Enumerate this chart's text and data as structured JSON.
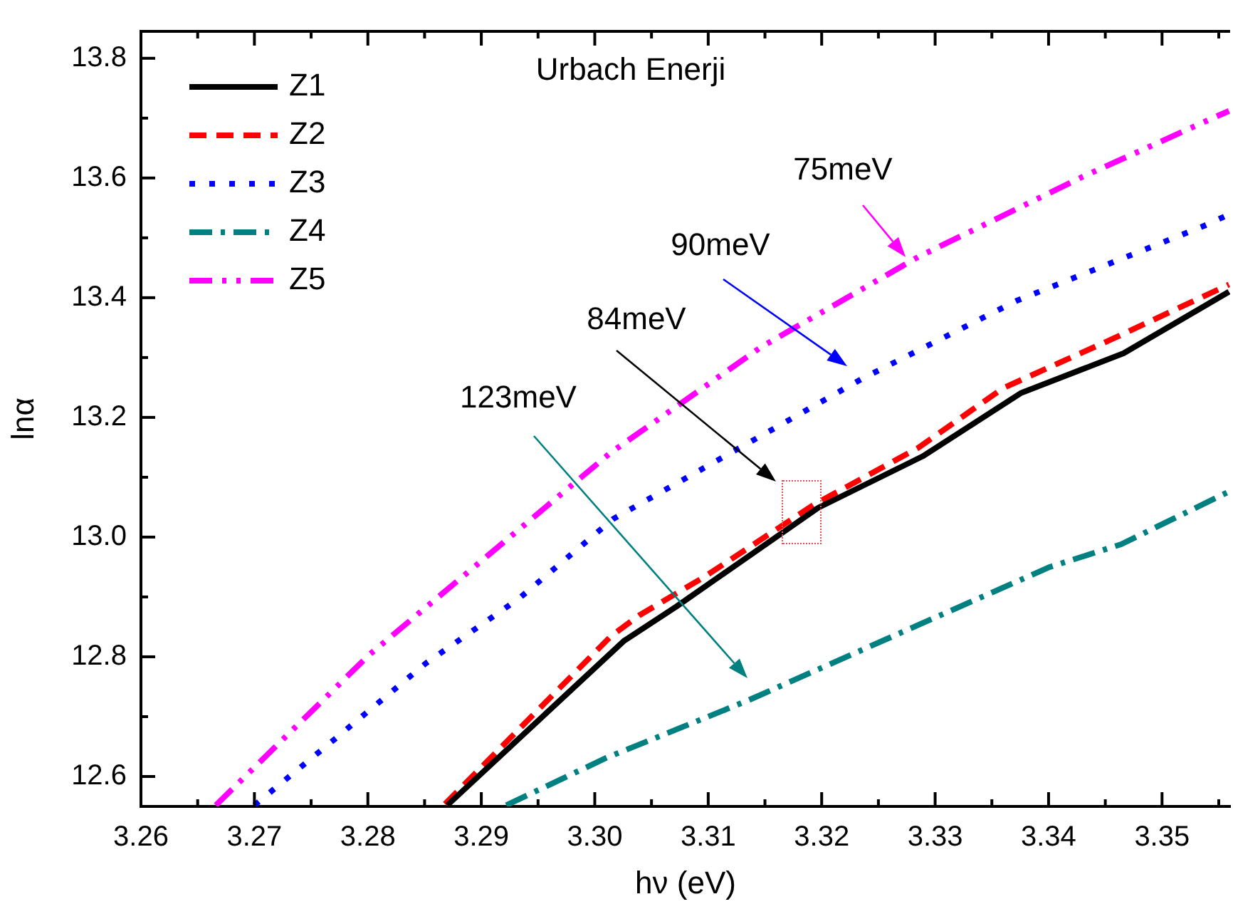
{
  "chart_data": {
    "type": "line",
    "xlabel": "hν (eV)",
    "ylabel": "lnα",
    "xlim": [
      3.26,
      3.356
    ],
    "ylim": [
      12.55,
      13.845
    ],
    "xticks": [
      3.26,
      {
        "value": 3.265,
        "label": null
      },
      3.27,
      {
        "value": 3.275,
        "label": null
      },
      3.28,
      {
        "value": 3.285,
        "label": null
      },
      3.29,
      {
        "value": 3.295,
        "label": null
      },
      {
        "value": 3.3,
        "label": "3.30"
      },
      {
        "value": 3.305,
        "label": null
      },
      3.31,
      {
        "value": 3.315,
        "label": null
      },
      3.32,
      {
        "value": 3.325,
        "label": null
      },
      3.33,
      {
        "value": 3.335,
        "label": null
      },
      3.34,
      {
        "value": 3.345,
        "label": null
      },
      3.35,
      {
        "value": 3.355,
        "label": null
      }
    ],
    "yticks": [
      12.6,
      {
        "value": 12.7,
        "label": null
      },
      12.8,
      {
        "value": 12.9,
        "label": null
      },
      {
        "value": 13,
        "label": "13.0"
      },
      {
        "value": 13.1,
        "label": null
      },
      13.2,
      {
        "value": 13.3,
        "label": null
      },
      13.4,
      {
        "value": 13.5,
        "label": null
      },
      13.6,
      {
        "value": 13.7,
        "label": null
      },
      13.8
    ],
    "grid": false,
    "legend": "top left",
    "marker": "none",
    "series": [
      {
        "name": "Z1",
        "color": "#000000",
        "line_style": "solid",
        "x": [
          3.287,
          3.3026,
          3.3072,
          3.3197,
          3.3289,
          3.3376,
          3.3466,
          3.3559
        ],
        "values": [
          12.552,
          12.827,
          12.884,
          13.049,
          13.135,
          13.241,
          13.307,
          13.41
        ]
      },
      {
        "name": "Z2",
        "color": "#ff0000",
        "line_style": "dashed",
        "x": [
          3.2868,
          3.3014,
          3.3039,
          3.3097,
          3.3193,
          3.3285,
          3.336,
          3.3455,
          3.3559
        ],
        "values": [
          12.554,
          12.834,
          12.869,
          12.934,
          13.054,
          13.149,
          13.249,
          13.33,
          13.422
        ]
      },
      {
        "name": "Z3",
        "color": "#0000ff",
        "line_style": "dotted",
        "x": [
          3.27,
          3.2768,
          3.2851,
          3.2933,
          3.3016,
          3.3153,
          3.3235,
          3.3372,
          3.3537,
          3.3559
        ],
        "values": [
          12.552,
          12.658,
          12.789,
          12.897,
          13.03,
          13.176,
          13.264,
          13.395,
          13.52,
          13.539
        ]
      },
      {
        "name": "Z4",
        "color": "#008080",
        "line_style": "dashdot",
        "x": [
          3.2922,
          3.301,
          3.3135,
          3.3285,
          3.3401,
          3.3464,
          3.3559
        ],
        "values": [
          12.552,
          12.631,
          12.727,
          12.853,
          12.95,
          12.988,
          13.076
        ]
      },
      {
        "name": "Z5",
        "color": "#ff00ff",
        "line_style": "dashdotdot",
        "x": [
          3.2666,
          3.2801,
          3.3014,
          3.3147,
          3.3285,
          3.343,
          3.3547,
          3.3559
        ],
        "values": [
          12.552,
          12.803,
          13.141,
          13.318,
          13.468,
          13.602,
          13.702,
          13.712
        ]
      }
    ],
    "annotations": [
      "Urbach Enerji",
      {
        "text": "75meV",
        "x": 3.3274,
        "y": 13.468
      },
      "90meV",
      "84meV",
      "123meV"
    ]
  }
}
